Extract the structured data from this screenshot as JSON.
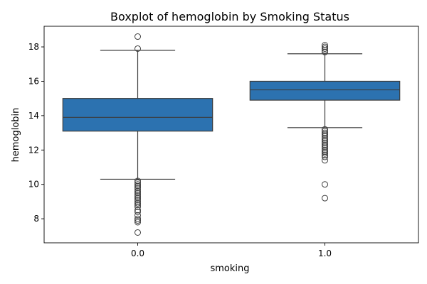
{
  "chart_data": {
    "type": "boxplot",
    "title": "Boxplot of hemoglobin by Smoking Status",
    "xlabel": "smoking",
    "ylabel": "hemoglobin",
    "categories": [
      "0.0",
      "1.0"
    ],
    "yticks": [
      8,
      10,
      12,
      14,
      16,
      18
    ],
    "ylim": [
      6.6,
      19.2
    ],
    "grid": false,
    "box_color": "#2c72b0",
    "edge_color": "#3d3d3d",
    "boxes": [
      {
        "category": "0.0",
        "whisker_low": 10.3,
        "q1": 13.1,
        "median": 13.9,
        "q3": 15.0,
        "whisker_high": 17.8,
        "outliers": [
          18.6,
          17.9,
          10.2,
          10.1,
          10.0,
          9.9,
          9.8,
          9.7,
          9.6,
          9.5,
          9.4,
          9.3,
          9.2,
          9.1,
          9.0,
          8.9,
          8.8,
          8.7,
          8.5,
          8.4,
          8.2,
          8.0,
          7.9,
          7.8,
          7.2
        ]
      },
      {
        "category": "1.0",
        "whisker_low": 13.3,
        "q1": 14.9,
        "median": 15.5,
        "q3": 16.0,
        "whisker_high": 17.6,
        "outliers": [
          18.1,
          18.0,
          17.9,
          17.8,
          17.7,
          13.2,
          13.1,
          13.0,
          12.9,
          12.8,
          12.7,
          12.6,
          12.5,
          12.4,
          12.3,
          12.2,
          12.1,
          12.0,
          11.9,
          11.8,
          11.7,
          11.6,
          11.4,
          10.0,
          9.2
        ]
      }
    ]
  }
}
